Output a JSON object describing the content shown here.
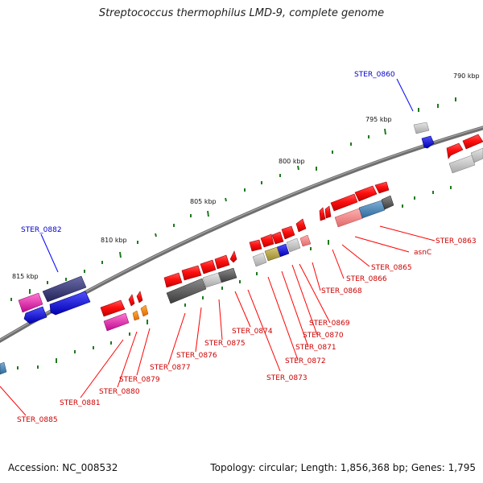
{
  "title": "Streptococcus thermophilus LMD-9, complete genome",
  "accession_text": "Accession: NC_008532",
  "summary_text": "Topology: circular; Length: 1,856,368 bp; Genes: 1,795",
  "scale_labels": [
    "790 kbp",
    "795 kbp",
    "800 kbp",
    "805 kbp",
    "810 kbp",
    "815 kbp"
  ],
  "blue_gene_labels": [
    "STER_0860",
    "STER_0882"
  ],
  "red_gene_labels": [
    "STER_0863",
    "asnC",
    "STER_0865",
    "STER_0866",
    "STER_0868",
    "STER_0869",
    "STER_0870",
    "STER_0871",
    "STER_0872",
    "STER_0873",
    "STER_0874",
    "STER_0875",
    "STER_0876",
    "STER_0877",
    "STER_0879",
    "STER_0880",
    "STER_0881",
    "STER_0885"
  ],
  "colors": {
    "backbone": "#7a7a7a",
    "tick": "#1e7a1e",
    "red_gene": "#e80f0f",
    "blue_gene": "#1010ee",
    "label_red": "#cc0000",
    "label_blue": "#0000cc"
  }
}
